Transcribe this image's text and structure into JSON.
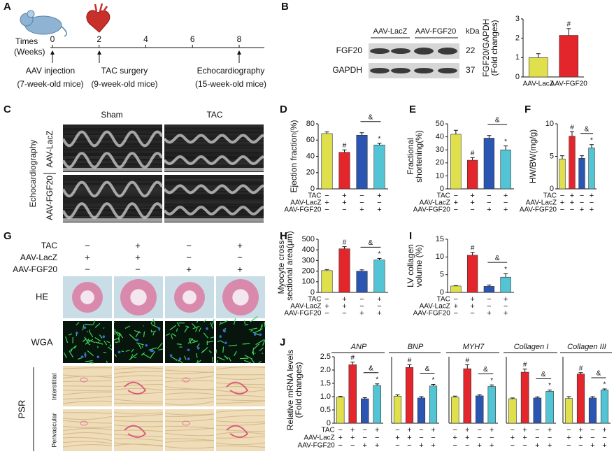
{
  "panel_labels": [
    "A",
    "B",
    "C",
    "D",
    "E",
    "F",
    "G",
    "H",
    "I",
    "J"
  ],
  "timeline": {
    "label": [
      "Times",
      "(Weeks)"
    ],
    "ticks": [
      0,
      2,
      4,
      6,
      8
    ],
    "events": [
      [
        "AAV injection",
        "(7-week-old mice)"
      ],
      [
        "TAC surgery",
        "(9-week-old mice)"
      ],
      [
        "Echocardiography",
        "(15-week-old mice)"
      ]
    ]
  },
  "blot": {
    "groups": [
      "AAV-LacZ",
      "AAV-FGF20"
    ],
    "unit": "kDa",
    "rows": [
      {
        "protein": "FGF20",
        "kda": 22
      },
      {
        "protein": "GAPDH",
        "kda": 37
      }
    ]
  },
  "echo": {
    "title": "Echocardiography",
    "columns": [
      "Sham",
      "TAC"
    ],
    "rows": [
      "AAV-LacZ",
      "AAV-FGF20"
    ]
  },
  "histology": {
    "rows": [
      "HE",
      "WGA"
    ],
    "psr": "PSR",
    "psr_rows": [
      "Interstitial",
      "Perivascular"
    ]
  },
  "conditions": {
    "names": [
      "TAC",
      "AAV-LacZ",
      "AAV-FGF20"
    ],
    "marks": [
      [
        "−",
        "+",
        "−",
        "+"
      ],
      [
        "+",
        "+",
        "−",
        "−"
      ],
      [
        "−",
        "−",
        "+",
        "+"
      ]
    ]
  },
  "bar_colors": [
    "#dfe04c",
    "#e3262b",
    "#2b55b2",
    "#52c4d4"
  ],
  "chart_data": [
    {
      "type": "bar",
      "ylabel": [
        "FGF20/GAPDH",
        "(Fold changes)"
      ],
      "categories": [
        "AAV-LacZ",
        "AAV-FGF20"
      ],
      "values": [
        1.0,
        2.15
      ],
      "errors": [
        0.2,
        0.35
      ],
      "markers": [
        null,
        "#"
      ],
      "ylim": [
        0,
        3
      ],
      "yticks": [
        0,
        1,
        2,
        3
      ]
    },
    {
      "type": "bar",
      "ylabel": [
        "Ejection fraction(%)"
      ],
      "values": [
        68,
        45,
        66,
        54
      ],
      "errors": [
        2,
        3,
        3,
        2
      ],
      "markers": [
        null,
        "#",
        null,
        "*"
      ],
      "bracket": "&",
      "ylim": [
        0,
        80
      ],
      "yticks": [
        0,
        20,
        40,
        60,
        80
      ]
    },
    {
      "type": "bar",
      "ylabel": [
        "Fractional",
        "shortening(%)"
      ],
      "values": [
        42,
        22,
        39,
        30
      ],
      "errors": [
        3,
        2,
        2,
        3
      ],
      "markers": [
        null,
        "#",
        null,
        "*"
      ],
      "bracket": "&",
      "ylim": [
        0,
        50
      ],
      "yticks": [
        0,
        10,
        20,
        30,
        40,
        50
      ]
    },
    {
      "type": "bar",
      "ylabel": [
        "HW/BW(mg/g)"
      ],
      "values": [
        4.6,
        8.1,
        4.7,
        6.3
      ],
      "errors": [
        0.5,
        0.7,
        0.4,
        0.5
      ],
      "markers": [
        null,
        "#",
        null,
        "*"
      ],
      "bracket": "&",
      "ylim": [
        0,
        10
      ],
      "yticks": [
        0,
        5,
        10
      ]
    },
    {
      "type": "bar",
      "ylabel": [
        "Myocyte cross-",
        "sectional area(μm)"
      ],
      "values": [
        205,
        410,
        200,
        305
      ],
      "errors": [
        10,
        20,
        12,
        15
      ],
      "markers": [
        null,
        "#",
        null,
        "*"
      ],
      "bracket": "&",
      "ylim": [
        0,
        500
      ],
      "yticks": [
        0,
        100,
        200,
        300,
        400,
        500
      ]
    },
    {
      "type": "bar",
      "ylabel": [
        "LV collagen",
        "volume (%)"
      ],
      "values": [
        1.8,
        10.5,
        1.7,
        4.3
      ],
      "errors": [
        0.1,
        0.8,
        0.4,
        1.0
      ],
      "markers": [
        null,
        "#",
        null,
        "*"
      ],
      "bracket": "&",
      "ylim": [
        0,
        15
      ],
      "yticks": [
        0,
        5,
        10,
        15
      ]
    },
    {
      "type": "bar",
      "title": "ANP",
      "ylabel": [
        "Relative mRNA levels",
        "(Fold changes)"
      ],
      "values": [
        0.98,
        2.2,
        0.92,
        1.42
      ],
      "errors": [
        0.03,
        0.1,
        0.04,
        0.06
      ],
      "markers": [
        null,
        "#",
        null,
        "*"
      ],
      "bracket": "&",
      "ylim": [
        0,
        2.5
      ],
      "yticks": [
        0,
        0.5,
        {
          "value": 1,
          "label": "1.0"
        },
        1.5,
        {
          "value": 2,
          "label": "2.0"
        },
        2.5
      ]
    },
    {
      "type": "bar",
      "title": "BNP",
      "values": [
        1.02,
        2.1,
        0.95,
        1.4
      ],
      "errors": [
        0.05,
        0.1,
        0.05,
        0.06
      ],
      "markers": [
        null,
        "#",
        null,
        "*"
      ],
      "bracket": "&",
      "ylim": [
        0,
        2.5
      ]
    },
    {
      "type": "bar",
      "title": "MYH7",
      "values": [
        0.98,
        2.05,
        1.03,
        1.38
      ],
      "errors": [
        0.04,
        0.15,
        0.04,
        0.06
      ],
      "markers": [
        null,
        "#",
        null,
        "*"
      ],
      "bracket": "&",
      "ylim": [
        0,
        2.5
      ]
    },
    {
      "type": "bar",
      "title": "Collagen I",
      "values": [
        0.92,
        1.92,
        0.95,
        1.2
      ],
      "errors": [
        0.03,
        0.12,
        0.04,
        0.05
      ],
      "markers": [
        null,
        "#",
        null,
        "*"
      ],
      "bracket": "&",
      "ylim": [
        0,
        2.5
      ]
    },
    {
      "type": "bar",
      "title": "Collagen III",
      "values": [
        0.93,
        1.85,
        0.95,
        1.25
      ],
      "errors": [
        0.07,
        0.05,
        0.05,
        0.04
      ],
      "markers": [
        null,
        "#",
        null,
        "*"
      ],
      "bracket": "&",
      "ylim": [
        0,
        2.5
      ]
    }
  ]
}
